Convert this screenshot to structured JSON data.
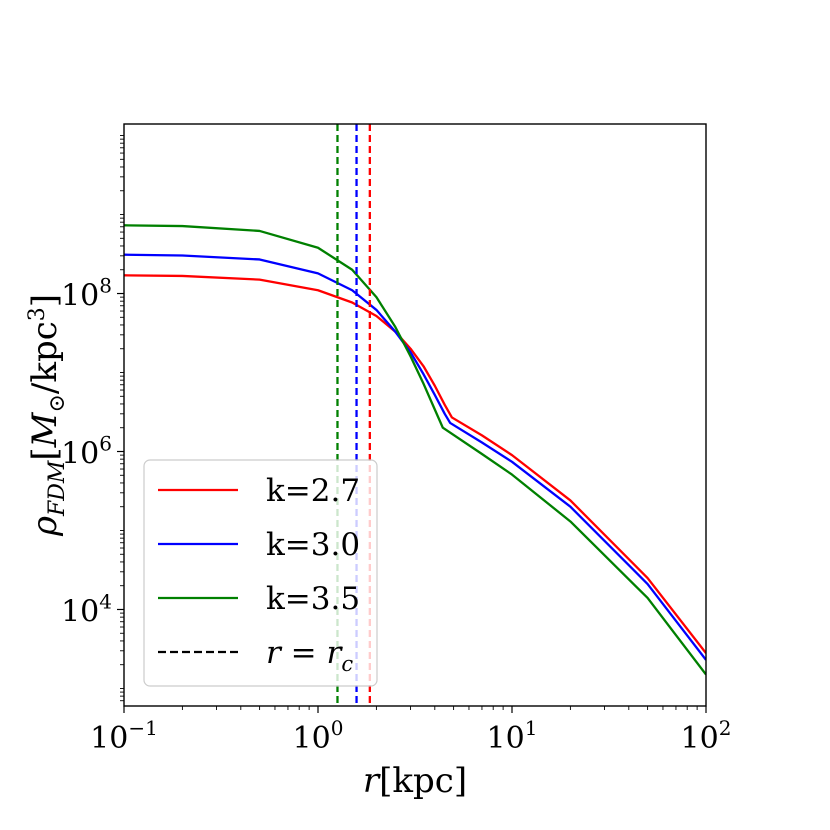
{
  "chart_data": {
    "type": "line",
    "title": "",
    "xlabel": "r[kpc]",
    "ylabel": "ρ_FDM [M_⊙/kpc³]",
    "xscale": "log",
    "yscale": "log",
    "xlim": [
      0.1,
      100
    ],
    "ylim": [
      600,
      14000000000
    ],
    "x_ticks": [
      {
        "value": 0.1,
        "base": "10",
        "exp": "−1"
      },
      {
        "value": 1,
        "base": "10",
        "exp": "0"
      },
      {
        "value": 10,
        "base": "10",
        "exp": "1"
      },
      {
        "value": 100,
        "base": "10",
        "exp": "2"
      }
    ],
    "y_ticks": [
      {
        "value": 10000,
        "base": "10",
        "exp": "4"
      },
      {
        "value": 1000000,
        "base": "10",
        "exp": "6"
      },
      {
        "value": 100000000,
        "base": "10",
        "exp": "8"
      }
    ],
    "series": [
      {
        "name": "k=2.7",
        "color": "#ff0000",
        "rc": 1.85,
        "x": [
          0.1,
          0.2,
          0.5,
          1.0,
          1.5,
          2.0,
          2.5,
          3.0,
          3.5,
          4.0,
          4.5,
          4.9,
          7,
          10,
          20,
          50,
          100
        ],
        "values": [
          170000000,
          167000000,
          150000000,
          110000000,
          77000000,
          52000000,
          33000000,
          20000000,
          12000000,
          6800000,
          3900000,
          2700000,
          1600000,
          900000,
          240000,
          25000,
          2800
        ]
      },
      {
        "name": "k=3.0",
        "color": "#0000ff",
        "rc": 1.58,
        "x": [
          0.1,
          0.2,
          0.5,
          1.0,
          1.5,
          2.0,
          2.5,
          3.0,
          3.5,
          4.0,
          4.5,
          4.8,
          7,
          10,
          20,
          50,
          100
        ],
        "values": [
          310000000,
          303000000,
          270000000,
          180000000,
          110000000,
          62000000,
          33000000,
          18000000,
          9500000,
          5200000,
          3000000,
          2300000,
          1300000,
          740000,
          200000,
          21000,
          2300
        ]
      },
      {
        "name": "k=3.5",
        "color": "#008000",
        "rc": 1.26,
        "x": [
          0.1,
          0.2,
          0.5,
          1.0,
          1.5,
          2.0,
          2.5,
          3.0,
          3.5,
          4.0,
          4.4,
          7,
          10,
          20,
          50,
          100
        ],
        "values": [
          730000000,
          715000000,
          620000000,
          380000000,
          200000000,
          90000000,
          38000000,
          16000000,
          7200000,
          3400000,
          2000000,
          930000,
          510000,
          130000,
          14000,
          1500
        ]
      }
    ],
    "legend": {
      "position": "lower-left",
      "entries": [
        {
          "label": "k=2.7",
          "color": "#ff0000",
          "style": "solid"
        },
        {
          "label": "k=3.0",
          "color": "#0000ff",
          "style": "solid"
        },
        {
          "label": "k=3.5",
          "color": "#008000",
          "style": "solid"
        },
        {
          "label": "r = r_c",
          "color": "#000000",
          "style": "dashed"
        }
      ]
    }
  }
}
